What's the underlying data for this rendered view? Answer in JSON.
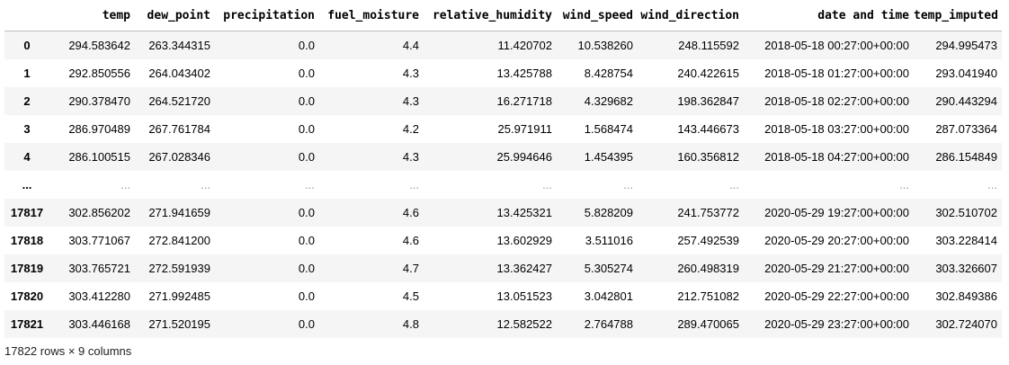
{
  "table": {
    "columns": [
      "",
      "temp",
      "dew_point",
      "precipitation",
      "fuel_moisture",
      "relative_humidity",
      "wind_speed",
      "wind_direction",
      "date and time",
      "temp_imputed"
    ],
    "rows": [
      {
        "index": "0",
        "cells": [
          "294.583642",
          "263.344315",
          "0.0",
          "4.4",
          "11.420702",
          "10.538260",
          "248.115592",
          "2018-05-18 00:27:00+00:00",
          "294.995473"
        ]
      },
      {
        "index": "1",
        "cells": [
          "292.850556",
          "264.043402",
          "0.0",
          "4.3",
          "13.425788",
          "8.428754",
          "240.422615",
          "2018-05-18 01:27:00+00:00",
          "293.041940"
        ]
      },
      {
        "index": "2",
        "cells": [
          "290.378470",
          "264.521720",
          "0.0",
          "4.3",
          "16.271718",
          "4.329682",
          "198.362847",
          "2018-05-18 02:27:00+00:00",
          "290.443294"
        ]
      },
      {
        "index": "3",
        "cells": [
          "286.970489",
          "267.761784",
          "0.0",
          "4.2",
          "25.971911",
          "1.568474",
          "143.446673",
          "2018-05-18 03:27:00+00:00",
          "287.073364"
        ]
      },
      {
        "index": "4",
        "cells": [
          "286.100515",
          "267.028346",
          "0.0",
          "4.3",
          "25.994646",
          "1.454395",
          "160.356812",
          "2018-05-18 04:27:00+00:00",
          "286.154849"
        ]
      },
      {
        "index": "...",
        "cells": [
          "...",
          "...",
          "...",
          "...",
          "...",
          "...",
          "...",
          "...",
          "..."
        ]
      },
      {
        "index": "17817",
        "cells": [
          "302.856202",
          "271.941659",
          "0.0",
          "4.6",
          "13.425321",
          "5.828209",
          "241.753772",
          "2020-05-29 19:27:00+00:00",
          "302.510702"
        ]
      },
      {
        "index": "17818",
        "cells": [
          "303.771067",
          "272.841200",
          "0.0",
          "4.6",
          "13.602929",
          "3.511016",
          "257.492539",
          "2020-05-29 20:27:00+00:00",
          "303.228414"
        ]
      },
      {
        "index": "17819",
        "cells": [
          "303.765721",
          "272.591939",
          "0.0",
          "4.7",
          "13.362427",
          "5.305274",
          "260.498319",
          "2020-05-29 21:27:00+00:00",
          "303.326607"
        ]
      },
      {
        "index": "17820",
        "cells": [
          "303.412280",
          "271.992485",
          "0.0",
          "4.5",
          "13.051523",
          "3.042801",
          "212.751082",
          "2020-05-29 22:27:00+00:00",
          "302.849386"
        ]
      },
      {
        "index": "17821",
        "cells": [
          "303.446168",
          "271.520195",
          "0.0",
          "4.8",
          "12.582522",
          "2.764788",
          "289.470065",
          "2020-05-29 23:27:00+00:00",
          "302.724070"
        ]
      }
    ]
  },
  "footer": {
    "shape_text": "17822 rows × 9 columns"
  }
}
